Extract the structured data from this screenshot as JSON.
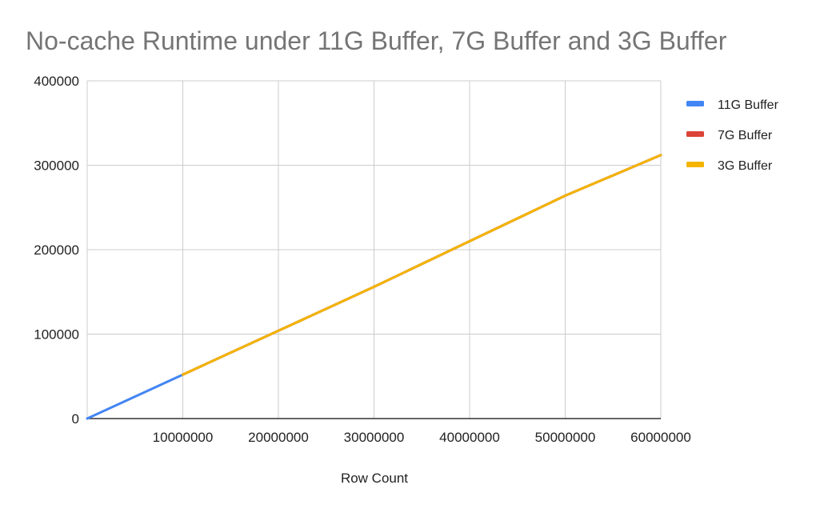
{
  "chart_data": {
    "type": "line",
    "title": "No-cache Runtime under 11G Buffer, 7G Buffer and 3G Buffer",
    "xlabel": "Row Count",
    "ylabel": "",
    "xlim": [
      0,
      60000000
    ],
    "ylim": [
      0,
      400000
    ],
    "x_ticks": [
      "10000000",
      "20000000",
      "30000000",
      "40000000",
      "50000000",
      "60000000"
    ],
    "y_ticks": [
      "0",
      "100000",
      "200000",
      "300000",
      "400000"
    ],
    "grid": true,
    "legend_position": "right",
    "series": [
      {
        "name": "11G Buffer",
        "color": "#4285F4",
        "x": [
          0,
          10000000,
          20000000,
          30000000,
          40000000,
          50000000,
          60000000
        ],
        "y": [
          0,
          52000,
          104000,
          156000,
          210000,
          264000,
          312000
        ]
      },
      {
        "name": "7G Buffer",
        "color": "#DB4437",
        "x": [
          10000000,
          20000000,
          30000000,
          40000000,
          50000000,
          60000000
        ],
        "y": [
          52000,
          104000,
          156000,
          210000,
          264000,
          312000
        ]
      },
      {
        "name": "3G Buffer",
        "color": "#F4B400",
        "x": [
          10000000,
          20000000,
          30000000,
          40000000,
          50000000,
          60000000
        ],
        "y": [
          52000,
          104000,
          156000,
          210000,
          264000,
          312000
        ]
      }
    ]
  }
}
